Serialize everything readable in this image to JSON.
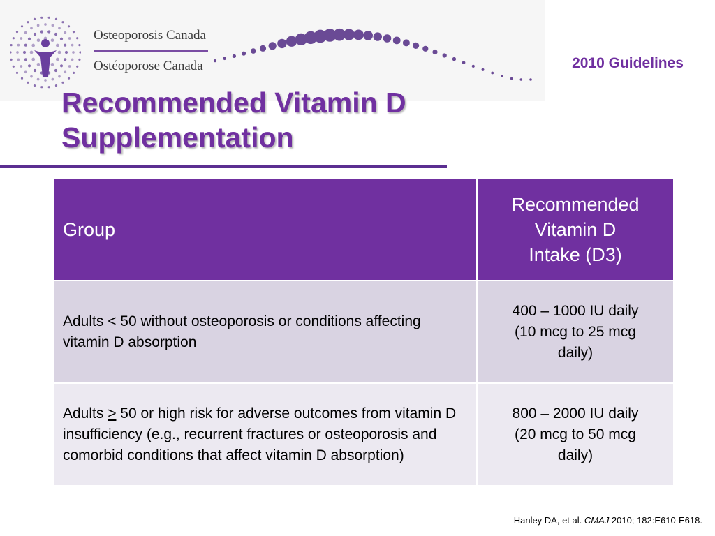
{
  "header": {
    "brand_en": "Osteoporosis Canada",
    "brand_fr": "Ostéoporose Canada",
    "guidelines_label": "2010 Guidelines",
    "logo_icon": "osteoporosis-canada-dot-figure-logo",
    "accent_color": "#7030a0",
    "dot_color": "#6a4a95"
  },
  "slide": {
    "title_line1": "Recommended Vitamin D",
    "title_line2": "Supplementation"
  },
  "table": {
    "header_group": "Group",
    "header_intake_line1": "Recommended",
    "header_intake_line2": "Vitamin D",
    "header_intake_line3": "Intake (D3)",
    "rows": [
      {
        "group": "Adults < 50 without osteoporosis or conditions affecting vitamin D absorption",
        "intake_line1": "400 – 1000 IU daily",
        "intake_line2": "(10 mcg to 25 mcg",
        "intake_line3": "daily)"
      },
      {
        "group_prefix": "Adults ",
        "group_symbol": ">",
        "group_rest": " 50 or high risk for adverse outcomes from vitamin D insufficiency (e.g., recurrent fractures or osteoporosis and comorbid conditions that affect vitamin D absorption)",
        "intake_line1": "800 – 2000 IU daily",
        "intake_line2": "(20 mcg to 50 mcg",
        "intake_line3": "daily)"
      }
    ]
  },
  "citation": {
    "authors": "Hanley DA, et al. ",
    "journal": "CMAJ",
    "details": " 2010; 182:E610-E618."
  }
}
